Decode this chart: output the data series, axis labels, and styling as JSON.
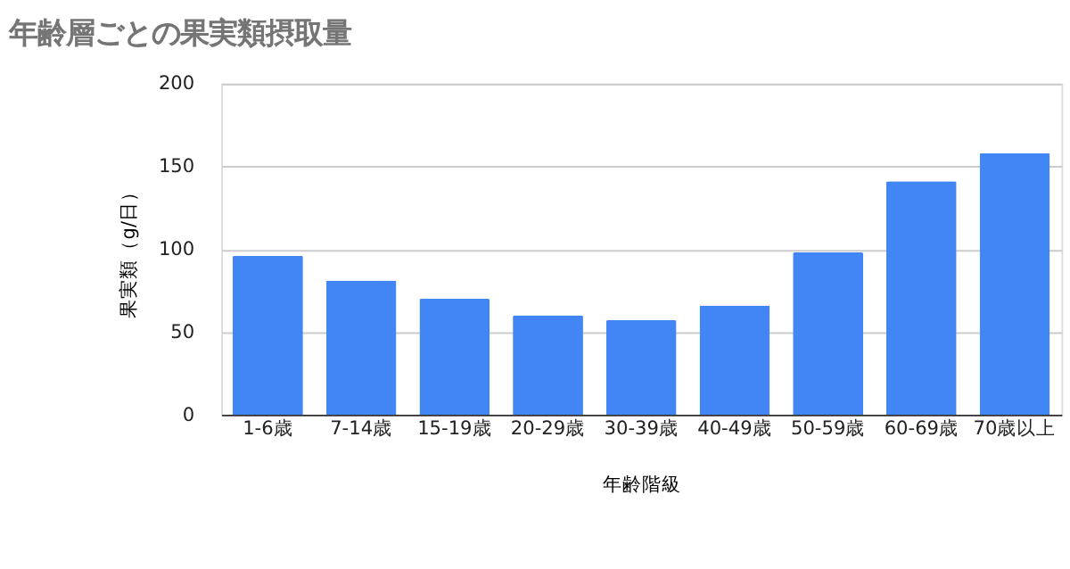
{
  "chart_data": {
    "type": "bar",
    "title": "年齢層ごとの果実類摂取量",
    "xlabel": "年齢階級",
    "ylabel": "果実類（g/日）",
    "categories": [
      "1-6歳",
      "7-14歳",
      "15-19歳",
      "20-29歳",
      "30-39歳",
      "40-49歳",
      "50-59歳",
      "60-69歳",
      "70歳以上"
    ],
    "values": [
      96,
      81,
      70,
      60,
      57,
      66,
      98,
      141,
      158
    ],
    "color": "#4285f4",
    "ylim": [
      0,
      200
    ],
    "yticks": [
      0,
      50,
      100,
      150,
      200
    ],
    "grid": "y"
  }
}
